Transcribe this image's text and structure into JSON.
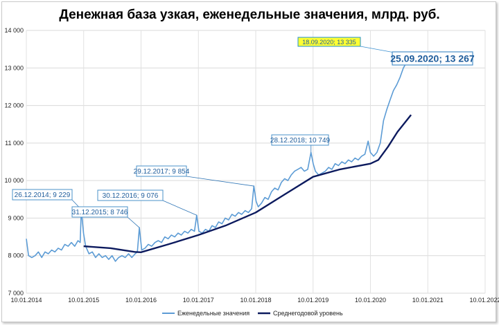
{
  "chart_data": {
    "type": "line",
    "title": "Денежная база узкая, еженедельные значения, млрд. руб.",
    "xlabel": "",
    "ylabel": "",
    "ylim": [
      7000,
      14000
    ],
    "y_ticks": [
      "7 000",
      "8 000",
      "9 000",
      "10 000",
      "11 000",
      "12 000",
      "13 000",
      "14 000"
    ],
    "x_ticks": [
      "10.01.2014",
      "10.01.2015",
      "10.01.2016",
      "10.01.2017",
      "10.01.2018",
      "10.01.2019",
      "10.01.2020",
      "10.01.2021",
      "10.01.2022"
    ],
    "x_range": [
      "2014-01-10",
      "2022-01-10"
    ],
    "grid": true,
    "legend_position": "bottom",
    "colors": {
      "weekly": "#5b9bd5",
      "average": "#0c1a5e",
      "highlight": "#ffff33"
    },
    "series": [
      {
        "name": "Еженедельные значения",
        "points": [
          [
            "2014-01-10",
            8450
          ],
          [
            "2014-01-24",
            8000
          ],
          [
            "2014-02-14",
            7950
          ],
          [
            "2014-03-07",
            8000
          ],
          [
            "2014-03-28",
            8100
          ],
          [
            "2014-04-18",
            7950
          ],
          [
            "2014-05-09",
            8100
          ],
          [
            "2014-05-30",
            8050
          ],
          [
            "2014-06-20",
            8150
          ],
          [
            "2014-07-11",
            8100
          ],
          [
            "2014-08-01",
            8200
          ],
          [
            "2014-08-22",
            8150
          ],
          [
            "2014-09-12",
            8300
          ],
          [
            "2014-10-03",
            8250
          ],
          [
            "2014-10-24",
            8350
          ],
          [
            "2014-11-14",
            8250
          ],
          [
            "2014-12-05",
            8400
          ],
          [
            "2014-12-19",
            8350
          ],
          [
            "2014-12-26",
            9229
          ],
          [
            "2015-01-09",
            8600
          ],
          [
            "2015-01-23",
            8250
          ],
          [
            "2015-02-13",
            8050
          ],
          [
            "2015-03-06",
            8100
          ],
          [
            "2015-03-27",
            7950
          ],
          [
            "2015-04-17",
            8050
          ],
          [
            "2015-05-08",
            7950
          ],
          [
            "2015-05-29",
            8000
          ],
          [
            "2015-06-19",
            7900
          ],
          [
            "2015-07-10",
            8000
          ],
          [
            "2015-07-31",
            7850
          ],
          [
            "2015-08-21",
            7950
          ],
          [
            "2015-09-11",
            8000
          ],
          [
            "2015-10-02",
            7950
          ],
          [
            "2015-10-23",
            8050
          ],
          [
            "2015-11-13",
            7950
          ],
          [
            "2015-12-04",
            8050
          ],
          [
            "2015-12-18",
            8100
          ],
          [
            "2015-12-31",
            8746
          ],
          [
            "2016-01-15",
            8150
          ],
          [
            "2016-02-05",
            8200
          ],
          [
            "2016-02-26",
            8300
          ],
          [
            "2016-03-18",
            8250
          ],
          [
            "2016-04-08",
            8350
          ],
          [
            "2016-04-29",
            8400
          ],
          [
            "2016-05-20",
            8350
          ],
          [
            "2016-06-10",
            8500
          ],
          [
            "2016-07-01",
            8450
          ],
          [
            "2016-07-22",
            8550
          ],
          [
            "2016-08-12",
            8500
          ],
          [
            "2016-09-02",
            8600
          ],
          [
            "2016-09-23",
            8550
          ],
          [
            "2016-10-14",
            8650
          ],
          [
            "2016-11-04",
            8600
          ],
          [
            "2016-11-25",
            8700
          ],
          [
            "2016-12-16",
            8650
          ],
          [
            "2016-12-30",
            9076
          ],
          [
            "2017-01-13",
            8650
          ],
          [
            "2017-02-03",
            8600
          ],
          [
            "2017-02-24",
            8700
          ],
          [
            "2017-03-17",
            8650
          ],
          [
            "2017-04-07",
            8800
          ],
          [
            "2017-04-28",
            8750
          ],
          [
            "2017-05-19",
            8900
          ],
          [
            "2017-06-09",
            8850
          ],
          [
            "2017-06-30",
            9000
          ],
          [
            "2017-07-21",
            8950
          ],
          [
            "2017-08-11",
            9100
          ],
          [
            "2017-09-01",
            9050
          ],
          [
            "2017-09-22",
            9150
          ],
          [
            "2017-10-13",
            9100
          ],
          [
            "2017-11-03",
            9200
          ],
          [
            "2017-11-24",
            9150
          ],
          [
            "2017-12-15",
            9250
          ],
          [
            "2017-12-29",
            9854
          ],
          [
            "2018-01-12",
            9450
          ],
          [
            "2018-01-26",
            9300
          ],
          [
            "2018-02-16",
            9400
          ],
          [
            "2018-03-09",
            9550
          ],
          [
            "2018-03-30",
            9500
          ],
          [
            "2018-04-20",
            9700
          ],
          [
            "2018-05-11",
            9800
          ],
          [
            "2018-06-01",
            9750
          ],
          [
            "2018-06-22",
            9950
          ],
          [
            "2018-07-13",
            10050
          ],
          [
            "2018-08-03",
            10000
          ],
          [
            "2018-08-24",
            10150
          ],
          [
            "2018-09-14",
            10250
          ],
          [
            "2018-10-05",
            10300
          ],
          [
            "2018-10-26",
            10350
          ],
          [
            "2018-11-16",
            10250
          ],
          [
            "2018-12-07",
            10300
          ],
          [
            "2018-12-28",
            10749
          ],
          [
            "2019-01-11",
            10450
          ],
          [
            "2019-01-25",
            10250
          ],
          [
            "2019-02-15",
            10150
          ],
          [
            "2019-03-08",
            10200
          ],
          [
            "2019-03-29",
            10250
          ],
          [
            "2019-04-19",
            10350
          ],
          [
            "2019-05-10",
            10300
          ],
          [
            "2019-05-31",
            10450
          ],
          [
            "2019-06-21",
            10400
          ],
          [
            "2019-07-12",
            10500
          ],
          [
            "2019-08-02",
            10450
          ],
          [
            "2019-08-23",
            10550
          ],
          [
            "2019-09-13",
            10500
          ],
          [
            "2019-10-04",
            10600
          ],
          [
            "2019-10-25",
            10550
          ],
          [
            "2019-11-15",
            10650
          ],
          [
            "2019-12-06",
            10700
          ],
          [
            "2019-12-27",
            11050
          ],
          [
            "2020-01-10",
            10750
          ],
          [
            "2020-01-31",
            10650
          ],
          [
            "2020-02-21",
            10750
          ],
          [
            "2020-03-13",
            11000
          ],
          [
            "2020-04-03",
            11600
          ],
          [
            "2020-04-24",
            11900
          ],
          [
            "2020-05-15",
            12150
          ],
          [
            "2020-06-05",
            12400
          ],
          [
            "2020-06-26",
            12550
          ],
          [
            "2020-07-17",
            12750
          ],
          [
            "2020-08-07",
            13000
          ],
          [
            "2020-08-28",
            13150
          ],
          [
            "2020-09-11",
            13250
          ],
          [
            "2020-09-18",
            13335
          ],
          [
            "2020-09-25",
            13267
          ]
        ]
      },
      {
        "name": "Среднегодовой уровень",
        "points": [
          [
            "2015-01-10",
            8250
          ],
          [
            "2015-07-01",
            8200
          ],
          [
            "2015-12-01",
            8100
          ],
          [
            "2016-01-10",
            8090
          ],
          [
            "2016-07-01",
            8300
          ],
          [
            "2017-01-10",
            8550
          ],
          [
            "2017-07-01",
            8800
          ],
          [
            "2018-01-10",
            9150
          ],
          [
            "2018-07-01",
            9600
          ],
          [
            "2019-01-10",
            10100
          ],
          [
            "2019-07-01",
            10300
          ],
          [
            "2020-01-10",
            10450
          ],
          [
            "2020-03-01",
            10550
          ],
          [
            "2020-05-01",
            10900
          ],
          [
            "2020-07-01",
            11300
          ],
          [
            "2020-09-25",
            11750
          ]
        ]
      }
    ],
    "annotations": [
      {
        "label": "26.12.2014; 9 229",
        "x": "2014-12-26",
        "y": 9229,
        "style": "normal"
      },
      {
        "label": "31.12.2015; 8 746",
        "x": "2015-12-31",
        "y": 8746,
        "style": "normal"
      },
      {
        "label": "30.12.2016; 9 076",
        "x": "2016-12-30",
        "y": 9076,
        "style": "normal"
      },
      {
        "label": "29.12.2017; 9 854",
        "x": "2017-12-29",
        "y": 9854,
        "style": "normal"
      },
      {
        "label": "28.12.2018; 10 749",
        "x": "2018-12-28",
        "y": 10749,
        "style": "normal"
      },
      {
        "label": "18.09.2020; 13 335",
        "x": "2020-09-18",
        "y": 13335,
        "style": "highlight"
      },
      {
        "label": "25.09.2020; 13 267",
        "x": "2020-09-25",
        "y": 13267,
        "style": "big"
      }
    ]
  }
}
